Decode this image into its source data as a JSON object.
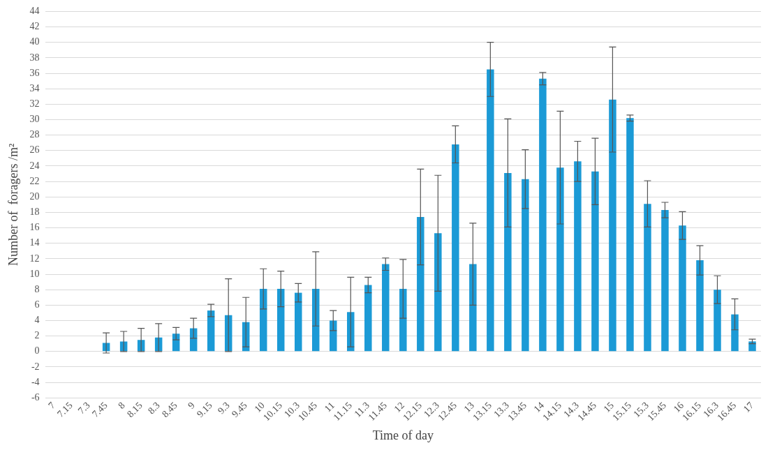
{
  "chart_data": {
    "type": "bar",
    "xlabel": "Time of day",
    "ylabel": "Number of  foragers /m²",
    "categories": [
      "7",
      "7.15",
      "7.3",
      "7.45",
      "8",
      "8.15",
      "8.3",
      "8.45",
      "9",
      "9.15",
      "9.3",
      "9.45",
      "10",
      "10.15",
      "10.3",
      "10.45",
      "11",
      "11.15",
      "11.3",
      "11.45",
      "12",
      "12.15",
      "12.3",
      "12.45",
      "13",
      "13.15",
      "13.3",
      "13.45",
      "14",
      "14.15",
      "14.3",
      "14.45",
      "15",
      "15.15",
      "15.3",
      "15.45",
      "16",
      "16.15",
      "16.3",
      "16.45",
      "17"
    ],
    "values": [
      0,
      0,
      0,
      1.1,
      1.3,
      1.5,
      1.8,
      2.3,
      3.0,
      5.3,
      4.7,
      3.8,
      8.1,
      8.1,
      7.6,
      8.1,
      4.0,
      5.1,
      8.6,
      11.3,
      8.1,
      17.4,
      15.3,
      26.8,
      11.3,
      36.5,
      23.1,
      22.3,
      35.3,
      23.8,
      24.6,
      23.3,
      32.6,
      30.2,
      19.1,
      18.3,
      16.3,
      11.8,
      8.0,
      4.8,
      1.3
    ],
    "errors": [
      null,
      null,
      null,
      1.3,
      1.3,
      1.5,
      1.8,
      0.8,
      1.3,
      0.8,
      4.7,
      3.2,
      2.6,
      2.3,
      1.2,
      4.8,
      1.3,
      4.5,
      1.0,
      0.8,
      3.8,
      6.2,
      7.5,
      2.4,
      5.3,
      3.5,
      7.0,
      3.8,
      0.8,
      7.3,
      2.6,
      4.3,
      6.8,
      0.4,
      3.0,
      1.0,
      1.8,
      1.9,
      1.8,
      2.0,
      0.3
    ],
    "color": "#1b9ad6",
    "ylim": [
      -6,
      44
    ],
    "yticks": [
      -6,
      -4,
      -2,
      0,
      2,
      4,
      6,
      8,
      10,
      12,
      14,
      16,
      18,
      20,
      22,
      24,
      26,
      28,
      30,
      32,
      34,
      36,
      38,
      40,
      42,
      44
    ],
    "grid": "y"
  }
}
